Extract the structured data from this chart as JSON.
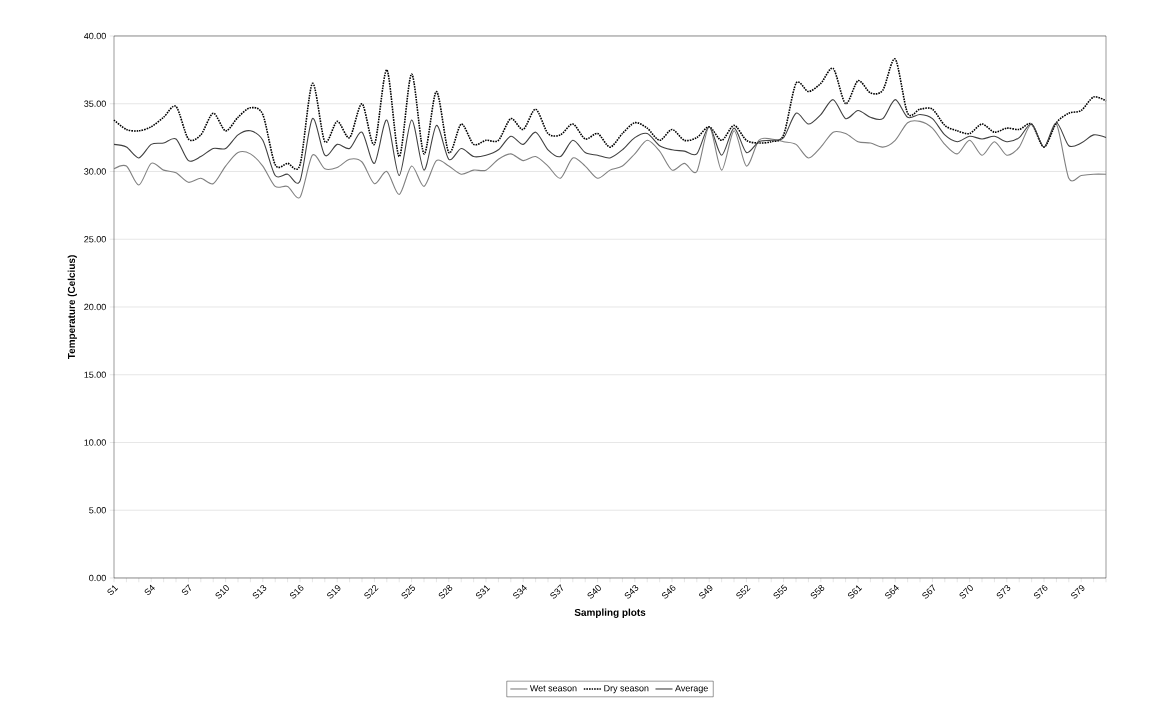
{
  "chart_data": {
    "type": "line",
    "xlabel": "Sampling plots",
    "ylabel": "Temperature (Celcius)",
    "categories": [
      "S1",
      null,
      null,
      "S4",
      null,
      null,
      "S7",
      null,
      null,
      "S10",
      null,
      null,
      "S13",
      null,
      null,
      "S16",
      null,
      null,
      "S19",
      null,
      null,
      "S22",
      null,
      null,
      "S25",
      null,
      null,
      "S28",
      null,
      null,
      "S31",
      null,
      null,
      "S34",
      null,
      null,
      "S37",
      null,
      null,
      "S40",
      null,
      null,
      "S43",
      null,
      null,
      "S46",
      null,
      null,
      "S49",
      null,
      null,
      "S52",
      null,
      null,
      "S55",
      null,
      null,
      "S58",
      null,
      null,
      "S61",
      null,
      null,
      "S64",
      null,
      null,
      "S67",
      null,
      null,
      "S70",
      null,
      null,
      "S73",
      null,
      null,
      "S76",
      null,
      null,
      "S79",
      null,
      null
    ],
    "ylim": [
      0,
      40
    ],
    "yticks": [
      {
        "value": 0,
        "label": "0.00"
      },
      {
        "value": 5,
        "label": "5.00"
      },
      {
        "value": 10,
        "label": "10.00"
      },
      {
        "value": 15,
        "label": "15.00"
      },
      {
        "value": 20,
        "label": "20.00"
      },
      {
        "value": 25,
        "label": "25.00"
      },
      {
        "value": 30,
        "label": "30.00"
      },
      {
        "value": 35,
        "label": "35.00"
      },
      {
        "value": 40,
        "label": "40.00"
      }
    ],
    "grid": "y",
    "legend": "bottom",
    "marker": "none",
    "series": [
      {
        "name": "Wet season",
        "color": "#808080",
        "line_style": "solid",
        "values": [
          30.2,
          30.4,
          29.0,
          30.6,
          30.1,
          29.9,
          29.2,
          29.5,
          29.1,
          30.4,
          31.4,
          31.3,
          30.4,
          28.9,
          28.9,
          28.1,
          31.2,
          30.2,
          30.3,
          30.9,
          30.7,
          29.1,
          30.0,
          28.3,
          30.4,
          28.9,
          30.8,
          30.4,
          29.8,
          30.1,
          30.1,
          30.9,
          31.3,
          30.8,
          31.1,
          30.4,
          29.5,
          31.0,
          30.4,
          29.5,
          30.1,
          30.4,
          31.3,
          32.3,
          31.5,
          30.1,
          30.6,
          30.0,
          33.3,
          30.1,
          33.0,
          30.4,
          32.3,
          32.4,
          32.2,
          32.0,
          31.0,
          31.8,
          32.9,
          32.8,
          32.2,
          32.1,
          31.8,
          32.3,
          33.6,
          33.7,
          33.2,
          32.0,
          31.3,
          32.3,
          31.2,
          32.2,
          31.2,
          31.8,
          33.5,
          31.8,
          33.5,
          29.5,
          29.7,
          29.8,
          29.8
        ]
      },
      {
        "name": "Dry season",
        "color": "#000000",
        "line_style": "dotted",
        "values": [
          33.8,
          33.1,
          33.0,
          33.3,
          34.0,
          34.8,
          32.4,
          32.7,
          34.3,
          33.0,
          34.0,
          34.7,
          34.2,
          30.5,
          30.6,
          30.5,
          36.5,
          32.2,
          33.7,
          32.5,
          35.0,
          32.0,
          37.5,
          31.1,
          37.2,
          31.3,
          35.9,
          31.4,
          33.5,
          32.0,
          32.3,
          32.3,
          33.9,
          33.1,
          34.6,
          32.8,
          32.7,
          33.5,
          32.4,
          32.8,
          31.8,
          32.8,
          33.6,
          33.2,
          32.3,
          33.1,
          32.3,
          32.5,
          33.3,
          32.3,
          33.4,
          32.3,
          32.1,
          32.2,
          32.7,
          36.5,
          35.9,
          36.5,
          37.6,
          35.0,
          36.7,
          35.8,
          36.0,
          38.3,
          34.3,
          34.6,
          34.6,
          33.4,
          33.0,
          32.8,
          33.5,
          32.9,
          33.2,
          33.1,
          33.5,
          31.8,
          33.6,
          34.3,
          34.5,
          35.5,
          35.2
        ]
      },
      {
        "name": "Average",
        "color": "#404040",
        "line_style": "solid",
        "values": [
          32.0,
          31.8,
          31.0,
          32.0,
          32.1,
          32.4,
          30.8,
          31.1,
          31.7,
          31.7,
          32.7,
          33.0,
          32.3,
          29.7,
          29.8,
          29.3,
          33.9,
          31.2,
          32.0,
          31.7,
          32.9,
          30.6,
          33.8,
          29.7,
          33.8,
          30.1,
          33.4,
          30.9,
          31.7,
          31.1,
          31.2,
          31.6,
          32.6,
          32.0,
          32.9,
          31.6,
          31.1,
          32.3,
          31.4,
          31.2,
          31.0,
          31.6,
          32.5,
          32.8,
          31.9,
          31.6,
          31.5,
          31.3,
          33.3,
          31.2,
          33.2,
          31.4,
          32.2,
          32.3,
          32.5,
          34.3,
          33.5,
          34.2,
          35.3,
          33.9,
          34.5,
          34.0,
          33.9,
          35.3,
          34.0,
          34.2,
          33.9,
          32.7,
          32.2,
          32.6,
          32.4,
          32.6,
          32.2,
          32.5,
          33.5,
          31.8,
          33.6,
          31.9,
          32.1,
          32.7,
          32.5
        ]
      }
    ]
  }
}
